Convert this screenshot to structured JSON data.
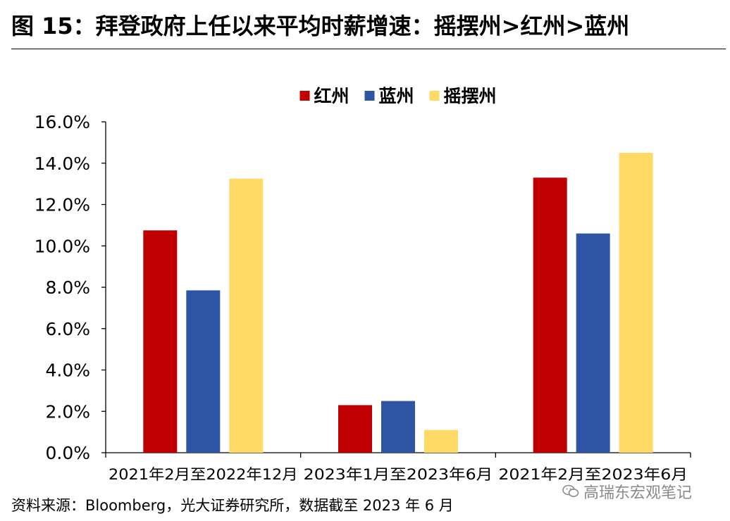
{
  "header": {
    "title": "图 15：拜登政府上任以来平均时薪增速：摇摆州>红州>蓝州"
  },
  "footer": {
    "source": "资料来源：Bloomberg，光大证券研究所，数据截至 2023 年 6 月",
    "watermark": "高瑞东宏观笔记",
    "watermark_icon": "wechat-icon"
  },
  "chart_data": {
    "type": "bar",
    "categories": [
      "2021年2月至2022年12月",
      "2023年1月至2023年6月",
      "2021年2月至2023年6月"
    ],
    "series": [
      {
        "name": "红州",
        "color": "#C00000",
        "values": [
          10.75,
          2.3,
          13.3
        ]
      },
      {
        "name": "蓝州",
        "color": "#2E54A4",
        "values": [
          7.85,
          2.5,
          10.6
        ]
      },
      {
        "name": "摇摆州",
        "color": "#FFD966",
        "values": [
          13.25,
          1.1,
          14.5
        ]
      }
    ],
    "ylim": [
      0,
      16
    ],
    "yticks": [
      0,
      2,
      4,
      6,
      8,
      10,
      12,
      14,
      16
    ],
    "ytick_labels": [
      "0.0%",
      "2.0%",
      "4.0%",
      "6.0%",
      "8.0%",
      "10.0%",
      "12.0%",
      "14.0%",
      "16.0%"
    ],
    "legend_position": "top-center",
    "grid": false
  }
}
